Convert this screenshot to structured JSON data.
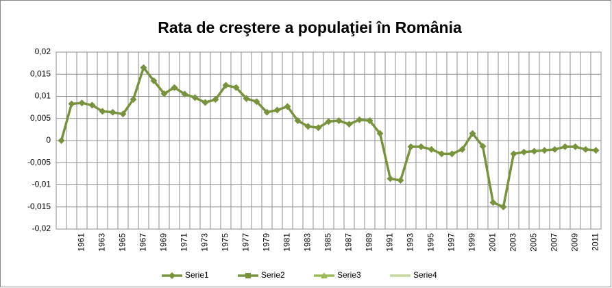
{
  "chart_data": {
    "type": "line",
    "title": "Rata de creştere a populaţiei în România",
    "categories": [
      null,
      null,
      "1961",
      null,
      "1963",
      null,
      "1965",
      null,
      "1967",
      null,
      "1969",
      null,
      "1971",
      null,
      "1973",
      null,
      "1975",
      null,
      "1977",
      null,
      "1979",
      null,
      "1981",
      null,
      "1983",
      null,
      "1985",
      null,
      "1987",
      null,
      "1989",
      null,
      "1991",
      null,
      "1993",
      null,
      "1995",
      null,
      "1997",
      null,
      "1999",
      null,
      "2001",
      null,
      "2003",
      null,
      "2005",
      null,
      "2007",
      null,
      "2009",
      null,
      "2011"
    ],
    "series": [
      {
        "name": "Serie1",
        "color": "#77933c",
        "marker": "diamond",
        "values": [
          0,
          0.0083,
          0.0085,
          0.008,
          0.0066,
          0.0064,
          0.006,
          0.0093,
          0.0165,
          0.0135,
          0.0106,
          0.012,
          0.0105,
          0.0097,
          0.0086,
          0.0093,
          0.0125,
          0.012,
          0.0095,
          0.0088,
          0.0064,
          0.0069,
          0.0077,
          0.0045,
          0.0032,
          0.0029,
          0.0043,
          0.0045,
          0.0037,
          0.0047,
          0.0045,
          0.0016,
          -0.0086,
          -0.009,
          -0.0014,
          -0.0014,
          -0.002,
          -0.003,
          -0.003,
          -0.002,
          0.0016,
          -0.0013,
          -0.014,
          -0.015,
          -0.003,
          -0.0026,
          -0.0024,
          -0.0022,
          -0.002,
          -0.0014,
          -0.0014,
          -0.002,
          -0.0022
        ]
      },
      {
        "name": "Serie2",
        "color": "#77933c",
        "marker": "square",
        "values": [
          null,
          null,
          null,
          null,
          null,
          null,
          null,
          null,
          null,
          null,
          null,
          null,
          null,
          null,
          null,
          null,
          null,
          null,
          null,
          null,
          null,
          null,
          null,
          null,
          null,
          null,
          null,
          null,
          null,
          null,
          null,
          null,
          null,
          null,
          null,
          null,
          null,
          null,
          null,
          null,
          null,
          null,
          null,
          null,
          null,
          null,
          null,
          null,
          null,
          null,
          null,
          null,
          null
        ]
      },
      {
        "name": "Serie3",
        "color": "#9bbb59",
        "marker": "triangle",
        "values": [
          null,
          null,
          null,
          null,
          null,
          null,
          null,
          null,
          null,
          null,
          null,
          null,
          null,
          null,
          null,
          null,
          null,
          null,
          null,
          null,
          null,
          null,
          null,
          null,
          null,
          null,
          null,
          null,
          null,
          null,
          null,
          null,
          null,
          null,
          null,
          null,
          null,
          null,
          null,
          null,
          null,
          null,
          null,
          null,
          null,
          null,
          null,
          null,
          null,
          null,
          null,
          null,
          null
        ]
      },
      {
        "name": "Serie4",
        "color": "#c3d69b",
        "marker": "none",
        "values": [
          null,
          null,
          null,
          null,
          null,
          null,
          null,
          null,
          null,
          null,
          null,
          null,
          null,
          null,
          null,
          null,
          null,
          null,
          null,
          null,
          null,
          null,
          null,
          null,
          null,
          null,
          null,
          null,
          null,
          null,
          null,
          null,
          null,
          null,
          null,
          null,
          null,
          null,
          null,
          null,
          null,
          null,
          null,
          null,
          null,
          null,
          null,
          null,
          null,
          null,
          null,
          null,
          null
        ]
      }
    ],
    "ylim": [
      -0.02,
      0.02
    ],
    "yticks": [
      {
        "value": -0.02,
        "label": "-0,02"
      },
      {
        "value": -0.015,
        "label": "-0,015"
      },
      {
        "value": -0.01,
        "label": "-0,01"
      },
      {
        "value": -0.005,
        "label": "-0,005"
      },
      0,
      {
        "value": 0.005,
        "label": "0,005"
      },
      {
        "value": 0.01,
        "label": "0,01"
      },
      {
        "value": 0.015,
        "label": "0,015"
      },
      {
        "value": 0.02,
        "label": "0,02"
      }
    ],
    "grid": true,
    "legend": "bottom"
  }
}
